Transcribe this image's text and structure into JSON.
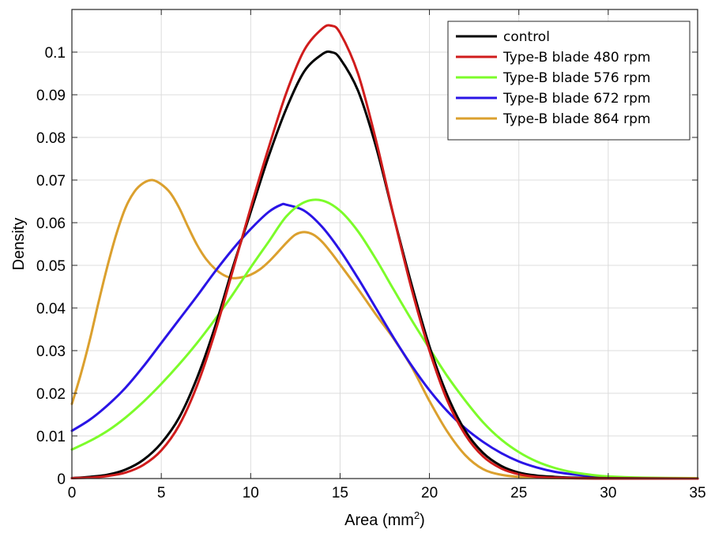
{
  "chart_data": {
    "type": "line",
    "xlabel": "Area (mm",
    "xlabel_superscript": "2",
    "xlabel_suffix": ")",
    "ylabel": "Density",
    "xlim": [
      0,
      35
    ],
    "ylim": [
      0,
      0.11
    ],
    "xticks": [
      0,
      5,
      10,
      15,
      20,
      25,
      30,
      35
    ],
    "yticks": [
      0,
      0.01,
      0.02,
      0.03,
      0.04,
      0.05,
      0.06,
      0.07,
      0.08,
      0.09,
      0.1
    ],
    "xtick_labels": [
      "0",
      "5",
      "10",
      "15",
      "20",
      "25",
      "30",
      "35"
    ],
    "ytick_labels": [
      "0",
      "0.01",
      "0.02",
      "0.03",
      "0.04",
      "0.05",
      "0.06",
      "0.07",
      "0.08",
      "0.09",
      "0.1"
    ],
    "grid": true,
    "legend_position": "top-right",
    "series": [
      {
        "name": "control",
        "color": "#000000",
        "x": [
          0,
          1,
          2,
          3,
          4,
          5,
          6,
          7,
          8,
          9,
          10,
          11,
          12,
          13,
          14,
          14.5,
          15,
          16,
          17,
          18,
          19,
          20,
          21,
          22,
          23,
          24,
          25,
          26,
          27,
          28,
          30,
          35
        ],
        "y": [
          0.0001,
          0.0004,
          0.0009,
          0.0021,
          0.0044,
          0.0083,
          0.0143,
          0.0236,
          0.0355,
          0.0495,
          0.0625,
          0.0755,
          0.0868,
          0.0955,
          0.0995,
          0.1,
          0.0985,
          0.091,
          0.078,
          0.0615,
          0.0455,
          0.031,
          0.0195,
          0.0112,
          0.006,
          0.003,
          0.0014,
          0.0007,
          0.0004,
          0.0002,
          0.0001,
          0
        ]
      },
      {
        "name": "Type-B blade 480 rpm",
        "color": "#d01c1c",
        "x": [
          0,
          1,
          2,
          3,
          4,
          5,
          6,
          7,
          8,
          9,
          10,
          11,
          12,
          13,
          14,
          14.5,
          15,
          16,
          17,
          18,
          19,
          20,
          21,
          22,
          23,
          24,
          25,
          26,
          27,
          28,
          30,
          35
        ],
        "y": [
          0.0001,
          0.0002,
          0.0006,
          0.0014,
          0.0032,
          0.0066,
          0.0125,
          0.0218,
          0.0342,
          0.0488,
          0.0635,
          0.0775,
          0.0905,
          0.1005,
          0.1055,
          0.1062,
          0.1045,
          0.095,
          0.0795,
          0.0615,
          0.0445,
          0.03,
          0.0183,
          0.0103,
          0.0052,
          0.0024,
          0.001,
          0.0004,
          0.0002,
          0.0001,
          0,
          0
        ]
      },
      {
        "name": "Type-B blade 576 rpm",
        "color": "#7cfc2a",
        "x": [
          0,
          1,
          2,
          3,
          4,
          5,
          6,
          7,
          8,
          9,
          10,
          11,
          12,
          13,
          14,
          15,
          16,
          17,
          18,
          19,
          20,
          21,
          22,
          23,
          24,
          25,
          26,
          27,
          28,
          29,
          30,
          32,
          35
        ],
        "y": [
          0.0068,
          0.0088,
          0.0112,
          0.0143,
          0.018,
          0.0222,
          0.0268,
          0.0318,
          0.0373,
          0.0432,
          0.0495,
          0.0555,
          0.0615,
          0.0648,
          0.0652,
          0.0628,
          0.058,
          0.0515,
          0.0443,
          0.0372,
          0.0305,
          0.024,
          0.0183,
          0.0132,
          0.0092,
          0.0062,
          0.004,
          0.0025,
          0.0015,
          0.0009,
          0.0005,
          0.0002,
          0.0001
        ]
      },
      {
        "name": "Type-B blade 672 rpm",
        "color": "#2a14e6",
        "x": [
          0,
          1,
          2,
          3,
          4,
          5,
          6,
          7,
          8,
          9,
          10,
          11,
          11.7,
          12,
          13,
          14,
          15,
          16,
          17,
          18,
          19,
          20,
          21,
          22,
          23,
          24,
          25,
          26,
          27,
          28,
          29,
          30,
          32,
          35
        ],
        "y": [
          0.0112,
          0.0138,
          0.0172,
          0.0213,
          0.0263,
          0.0318,
          0.0373,
          0.0428,
          0.0485,
          0.0538,
          0.0585,
          0.0625,
          0.0642,
          0.0642,
          0.0628,
          0.059,
          0.0535,
          0.047,
          0.04,
          0.033,
          0.0265,
          0.0207,
          0.0158,
          0.0118,
          0.0086,
          0.006,
          0.004,
          0.0026,
          0.0016,
          0.001,
          0.0006,
          0.0003,
          0.0001,
          0
        ]
      },
      {
        "name": "Type-B blade 864 rpm",
        "color": "#dba02e",
        "x": [
          0,
          0.5,
          1,
          1.5,
          2,
          2.5,
          3,
          3.5,
          4,
          4.5,
          5,
          5.5,
          6,
          6.5,
          7,
          7.5,
          8,
          8.5,
          9,
          9.5,
          10,
          10.5,
          11,
          11.5,
          12,
          12.5,
          13,
          13.5,
          14,
          14.5,
          15,
          16,
          17,
          18,
          19,
          20,
          21,
          22,
          23,
          24,
          25,
          26,
          27,
          30,
          35
        ],
        "y": [
          0.0175,
          0.0245,
          0.0325,
          0.0415,
          0.05,
          0.0575,
          0.0635,
          0.0673,
          0.0693,
          0.07,
          0.069,
          0.067,
          0.0635,
          0.059,
          0.0548,
          0.0515,
          0.0492,
          0.0477,
          0.047,
          0.0472,
          0.0478,
          0.049,
          0.0508,
          0.053,
          0.0553,
          0.0572,
          0.0578,
          0.0572,
          0.0555,
          0.053,
          0.0502,
          0.0445,
          0.0385,
          0.0328,
          0.0262,
          0.0182,
          0.011,
          0.0055,
          0.0022,
          0.0009,
          0.0004,
          0.0002,
          0.0001,
          0,
          0
        ]
      }
    ]
  }
}
